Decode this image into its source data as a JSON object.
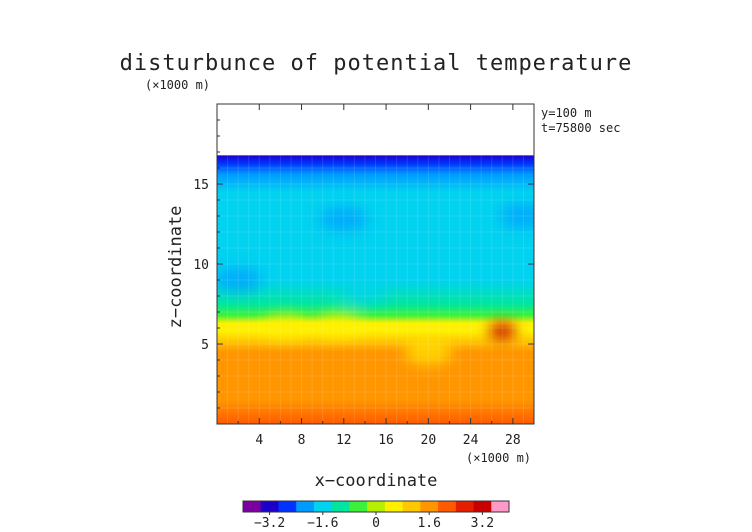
{
  "chart_data": {
    "type": "heatmap",
    "title": "disturbunce of potential temperature",
    "units_note": "(×1000 m)",
    "xlabel": "x−coordinate",
    "xunits": "(×1000 m)",
    "ylabel": "z−coordinate",
    "annotations": [
      "y=100 m",
      "t=75800 sec"
    ],
    "xlim": [
      0,
      30
    ],
    "ylim": [
      0,
      20
    ],
    "xticks": [
      4,
      8,
      12,
      16,
      20,
      24,
      28
    ],
    "xtick_labels": [
      "4",
      "8",
      "12",
      "16",
      "20",
      "24",
      "28"
    ],
    "yticks": [
      5,
      10,
      15
    ],
    "ytick_labels": [
      "5",
      "10",
      "15"
    ],
    "data_top_z": 16.8,
    "colorbar": {
      "range": [
        -4.0,
        4.0
      ],
      "ticks": [
        -3.2,
        -1.6,
        0,
        1.6,
        3.2
      ],
      "tick_labels": [
        "−3.2",
        "−1.6",
        "0",
        "1.6",
        "3.2"
      ],
      "colors": [
        "#7a00a0",
        "#1c00c8",
        "#0032ff",
        "#009bff",
        "#00d2f0",
        "#00e6a0",
        "#3cf03c",
        "#b4f000",
        "#fff000",
        "#ffc800",
        "#ff9600",
        "#ff5a00",
        "#e61e00",
        "#c80000",
        "#ff9ac8"
      ]
    },
    "profile": [
      {
        "z": 0.0,
        "value": 2.0
      },
      {
        "z": 1.5,
        "value": 1.85
      },
      {
        "z": 3.0,
        "value": 1.6
      },
      {
        "z": 4.5,
        "value": 1.35
      },
      {
        "z": 5.2,
        "value": 1.0
      },
      {
        "z": 5.8,
        "value": 0.7
      },
      {
        "z": 6.3,
        "value": 0.3
      },
      {
        "z": 6.8,
        "value": -0.4
      },
      {
        "z": 7.5,
        "value": -1.0
      },
      {
        "z": 9.0,
        "value": -1.4
      },
      {
        "z": 12.0,
        "value": -1.35
      },
      {
        "z": 14.5,
        "value": -1.45
      },
      {
        "z": 15.6,
        "value": -2.0
      },
      {
        "z": 16.3,
        "value": -2.7
      },
      {
        "z": 16.8,
        "value": -3.4
      }
    ],
    "features": [
      {
        "x": 27.0,
        "z": 5.8,
        "value": 3.2
      },
      {
        "x": 6.5,
        "z": 6.1,
        "value": 0.5
      },
      {
        "x": 11.5,
        "z": 6.2,
        "value": 0.6
      },
      {
        "x": 20.0,
        "z": 4.5,
        "value": 0.6
      },
      {
        "x": 2.0,
        "z": 9.0,
        "value": -2.0
      },
      {
        "x": 12.0,
        "z": 12.8,
        "value": -2.0
      },
      {
        "x": 14.0,
        "z": 8.2,
        "value": -1.8
      },
      {
        "x": 29.0,
        "z": 13.0,
        "value": -2.0
      }
    ]
  }
}
